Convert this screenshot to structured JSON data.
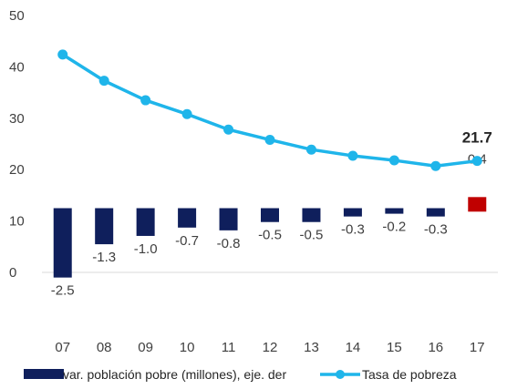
{
  "chart_data": {
    "type": "bar+line",
    "categories": [
      "07",
      "08",
      "09",
      "10",
      "11",
      "12",
      "13",
      "14",
      "15",
      "16",
      "17"
    ],
    "y_ticks": [
      "50",
      "40",
      "30",
      "20",
      "10",
      "0"
    ],
    "ylim": [
      -10,
      50
    ],
    "bar_baseline": 12.5,
    "grid": false,
    "legend_position": "bottom",
    "series": [
      {
        "name": "var. población pobre (millones), eje. der",
        "type": "bar",
        "values": [
          -2.5,
          -1.3,
          -1.0,
          -0.7,
          -0.8,
          -0.5,
          -0.5,
          -0.3,
          -0.2,
          -0.3,
          0.4
        ],
        "labels": [
          "-2.5",
          "-1.3",
          "-1.0",
          "-0.7",
          "-0.8",
          "-0.5",
          "-0.5",
          "-0.3",
          "-0.2",
          "-0.3",
          "0.4"
        ],
        "color": "#0f1f5c",
        "highlight_color": "#c00000"
      },
      {
        "name": "Tasa de pobreza",
        "type": "line",
        "values": [
          42.4,
          37.3,
          33.5,
          30.8,
          27.8,
          25.8,
          23.9,
          22.7,
          21.8,
          20.7,
          21.7
        ],
        "end_label": "21.7",
        "color": "#1fb5ea"
      }
    ]
  }
}
